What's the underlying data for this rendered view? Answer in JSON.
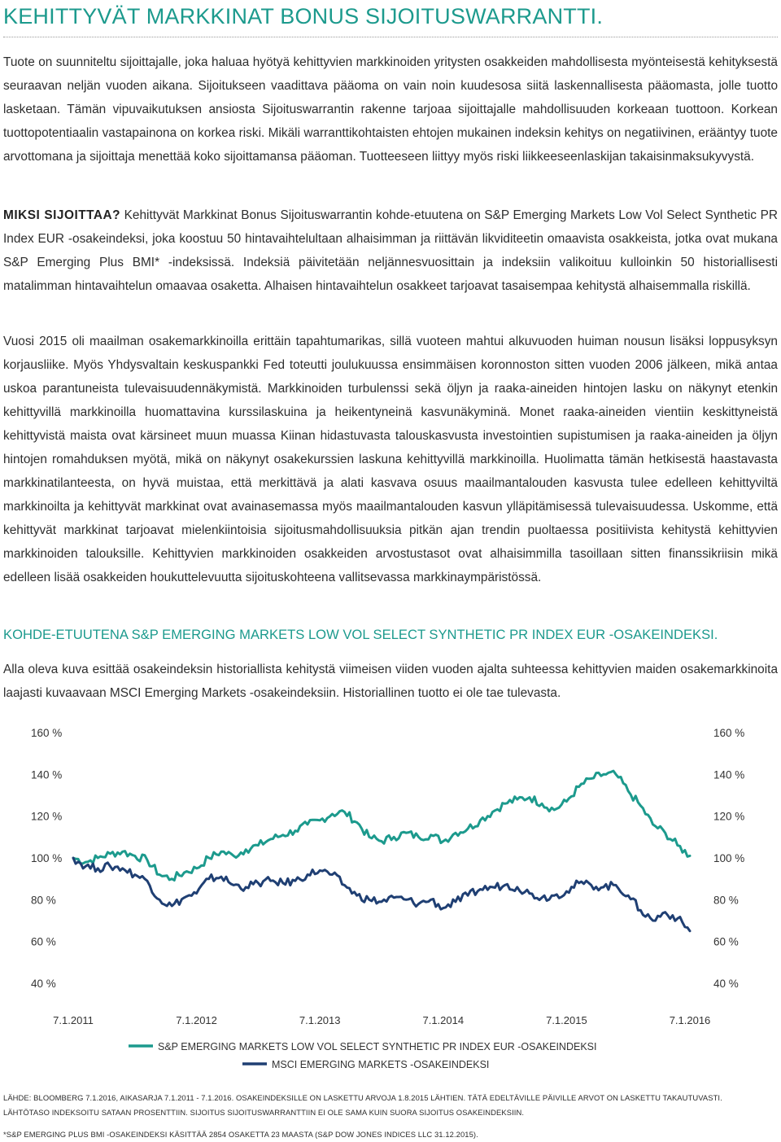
{
  "title": "KEHITTYVÄT MARKKINAT BONUS SIJOITUSWARRANTTI.",
  "intro": "Tuote on suunniteltu sijoittajalle, joka haluaa hyötyä kehittyvien markkinoiden yritysten osakkeiden mahdollisesta myönteisestä kehityksestä seuraavan neljän vuoden aikana. Sijoitukseen vaadittava pääoma on vain noin kuudesosa siitä laskennallisesta pääomasta, jolle tuotto lasketaan. Tämän vipuvaikutuksen ansiosta Sijoituswarrantin rakenne tarjoaa sijoittajalle mahdollisuuden korkeaan tuottoon. Korkean tuottopotentiaalin vastapainona on korkea riski. Mikäli warranttikohtaisten ehtojen mukainen indeksin kehitys on negatiivinen, erääntyy tuote arvottomana ja sijoittaja menettää koko sijoittamansa pääoman. Tuotteeseen liittyy myös riski liikkeeseenlaskijan takaisinmaksukyvystä.",
  "why": {
    "lead": "MIKSI SIJOITTAA?",
    "text": "Kehittyvät Markkinat Bonus Sijoituswarrantin kohde-etuutena on S&P Emerging Markets Low Vol Select Synthetic PR Index EUR -osakeindeksi, joka koostuu 50 hintavaihtelultaan alhaisimman ja riittävän likviditeetin omaavista osakkeista, jotka ovat mukana S&P Emerging Plus BMI* -indeksissä. Indeksiä päivitetään neljännesvuosittain ja indeksiin valikoituu kulloinkin 50 historiallisesti matalimman hintavaihtelun omaavaa osaketta. Alhaisen hintavaihtelun osakkeet tarjoavat tasaisempaa kehitystä alhaisemmalla riskillä."
  },
  "market_text": "Vuosi 2015 oli maailman osakemarkkinoilla erittäin tapahtumarikas, sillä vuoteen mahtui alkuvuoden huiman nousun lisäksi loppusyksyn korjausliike. Myös Yhdysvaltain keskuspankki Fed toteutti joulukuussa ensimmäisen koronnoston sitten vuoden 2006 jälkeen, mikä antaa uskoa parantuneista tulevaisuudennäkymistä. Markkinoiden turbulenssi sekä öljyn ja raaka-aineiden hintojen lasku on näkynyt etenkin kehittyvillä markkinoilla huomattavina kurssilaskuina ja heikentyneinä kasvunäkyminä. Monet raaka-aineiden vientiin keskittyneistä kehittyvistä maista ovat kärsineet muun muassa Kiinan hidastuvasta talouskasvusta investointien supistumisen ja raaka-aineiden ja öljyn hintojen romahduksen myötä, mikä on näkynyt osakekurssien laskuna kehittyvillä markkinoilla. Huolimatta tämän hetkisestä haastavasta markkinatilanteesta, on hyvä muistaa, että merkittävä ja alati kasvava osuus maailmantalouden kasvusta tulee edelleen kehittyviltä markkinoilta ja kehittyvät markkinat ovat avainasemassa myös maailmantalouden kasvun ylläpitämisessä tulevaisuudessa.  Uskomme, että kehittyvät markkinat tarjoavat mielenkiintoisia sijoitusmahdollisuuksia pitkän ajan trendin puoltaessa positiivista kehitystä kehittyvien markkinoiden talouksille. Kehittyvien markkinoiden osakkeiden arvostustasot ovat alhaisimmilla tasoillaan sitten finanssikriisin mikä edelleen lisää osakkeiden houkuttelevuutta sijoituskohteena vallitsevassa markkinaympäristössä.",
  "section_heading": "KOHDE-ETUUTENA S&P EMERGING MARKETS LOW VOL SELECT SYNTHETIC PR INDEX EUR -OSAKEINDEKSI.",
  "chart_intro": "Alla oleva kuva esittää osakeindeksin historiallista kehitystä viimeisen viiden vuoden ajalta suhteessa kehittyvien maiden osakemarkkinoita laajasti kuvaavaan MSCI Emerging Markets -osakeindeksiin. Historiallinen tuotto ei ole tae tulevasta.",
  "chart_data": {
    "type": "line",
    "x_ticks": [
      "7.1.2011",
      "7.1.2012",
      "7.1.2013",
      "7.1.2014",
      "7.1.2015",
      "7.1.2016"
    ],
    "y_ticks": [
      "160 %",
      "140 %",
      "120 %",
      "100 %",
      "80 %",
      "60 %",
      "40 %"
    ],
    "ylim": [
      40,
      160
    ],
    "xlim": [
      2011.0,
      2016.0
    ],
    "grid": false,
    "legend_position": "bottom",
    "series": [
      {
        "name": "S&P EMERGING MARKETS LOW VOL SELECT SYNTHETIC PR INDEX EUR -OSAKEINDEKSI",
        "color": "#1c9a8d",
        "x": [
          2011.0,
          2011.1,
          2011.2,
          2011.3,
          2011.4,
          2011.5,
          2011.6,
          2011.7,
          2011.8,
          2011.9,
          2012.0,
          2012.1,
          2012.2,
          2012.3,
          2012.4,
          2012.5,
          2012.6,
          2012.7,
          2012.8,
          2012.9,
          2013.0,
          2013.1,
          2013.2,
          2013.3,
          2013.4,
          2013.5,
          2013.6,
          2013.7,
          2013.8,
          2013.9,
          2014.0,
          2014.1,
          2014.2,
          2014.3,
          2014.4,
          2014.5,
          2014.6,
          2014.7,
          2014.8,
          2014.9,
          2015.0,
          2015.1,
          2015.2,
          2015.3,
          2015.4,
          2015.5,
          2015.6,
          2015.7,
          2015.8,
          2015.9,
          2016.0
        ],
        "values": [
          100,
          98,
          100,
          102,
          103,
          101,
          99,
          92,
          90,
          93,
          95,
          100,
          103,
          101,
          104,
          106,
          109,
          111,
          113,
          116,
          118,
          121,
          122,
          117,
          110,
          108,
          110,
          112,
          110,
          111,
          108,
          112,
          114,
          118,
          122,
          126,
          128,
          129,
          126,
          123,
          127,
          134,
          138,
          140,
          140,
          132,
          125,
          116,
          112,
          106,
          101
        ]
      },
      {
        "name": "MSCI EMERGING MARKETS -OSAKEINDEKSI",
        "color": "#1f3f73",
        "x": [
          2011.0,
          2011.1,
          2011.2,
          2011.3,
          2011.4,
          2011.5,
          2011.6,
          2011.7,
          2011.8,
          2011.9,
          2012.0,
          2012.1,
          2012.2,
          2012.3,
          2012.4,
          2012.5,
          2012.6,
          2012.7,
          2012.8,
          2012.9,
          2013.0,
          2013.1,
          2013.2,
          2013.3,
          2013.4,
          2013.5,
          2013.6,
          2013.7,
          2013.8,
          2013.9,
          2014.0,
          2014.1,
          2014.2,
          2014.3,
          2014.4,
          2014.5,
          2014.6,
          2014.7,
          2014.8,
          2014.9,
          2015.0,
          2015.1,
          2015.2,
          2015.3,
          2015.4,
          2015.5,
          2015.6,
          2015.7,
          2015.8,
          2015.9,
          2016.0
        ],
        "values": [
          100,
          96,
          95,
          96,
          95,
          92,
          89,
          80,
          77,
          81,
          83,
          90,
          91,
          87,
          86,
          88,
          89,
          88,
          89,
          92,
          94,
          92,
          87,
          82,
          80,
          79,
          81,
          80,
          78,
          80,
          76,
          79,
          82,
          85,
          86,
          87,
          86,
          83,
          81,
          82,
          84,
          88,
          87,
          86,
          87,
          82,
          75,
          70,
          74,
          71,
          65
        ]
      }
    ]
  },
  "footnotes": {
    "line1": "LÄHDE: BLOOMBERG 7.1.2016, AIKASARJA 7.1.2011 - 7.1.2016. OSAKEINDEKSILLE ON LASKETTU ARVOJA 1.8.2015 LÄHTIEN. TÄTÄ EDELTÄVILLE PÄIVILLE ARVOT ON LASKETTU TAKAUTUVASTI.",
    "line2": "LÄHTÖTASO INDEKSOITU SATAAN PROSENTTIIN. SIJOITUS SIJOITUSWARRANTTIIN EI OLE SAMA KUIN SUORA SIJOITUS OSAKEINDEKSIIN.",
    "star": "*S&P EMERGING PLUS BMI -OSAKEINDEKSI KÄSITTÄÄ 2854 OSAKETTA 23 MAASTA (S&P DOW JONES INDICES LLC 31.12.2015)."
  }
}
